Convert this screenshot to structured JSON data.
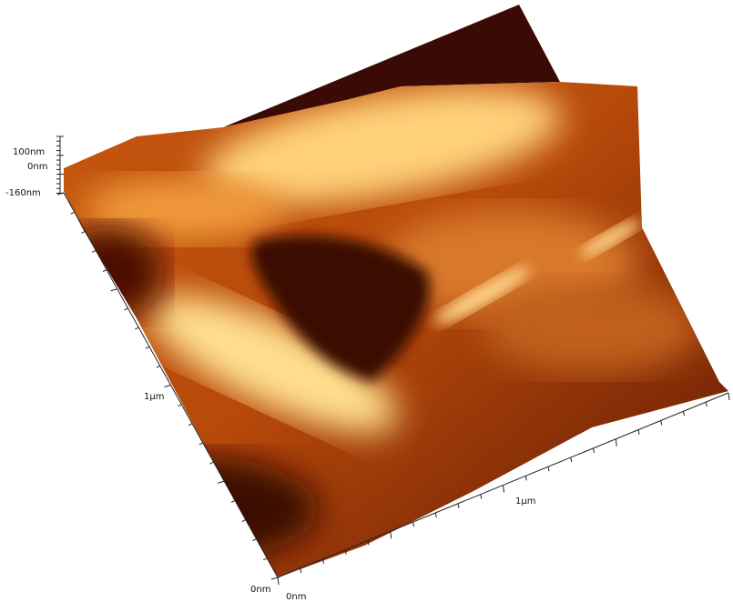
{
  "z_axis": {
    "labels": [
      "100nm",
      "0nm",
      "-160nm"
    ]
  },
  "y_axis": {
    "label": "1μm",
    "origin": "0nm"
  },
  "x_axis": {
    "label": "1μm",
    "origin": "0nm"
  }
}
